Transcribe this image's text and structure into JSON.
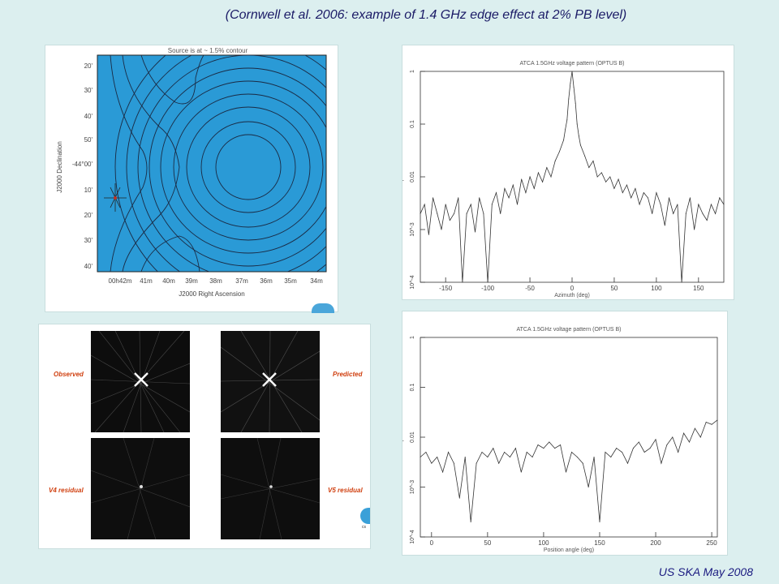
{
  "slide": {
    "title": "(Cornwell et al. 2006: example of 1.4 GHz edge effect at 2% PB level)",
    "footer": "US SKA May 2008",
    "background": "#dcefef"
  },
  "contour_map": {
    "title": "Source is at ~ 1.5% contour",
    "ylabel": "J2000 Declination",
    "xlabel": "J2000 Right Ascension",
    "y_ticks": [
      "20'",
      "30'",
      "40'",
      "50'",
      "-44°00'",
      "10'",
      "20'",
      "30'",
      "40'"
    ],
    "x_ticks": [
      "00h42m",
      "41m",
      "40m",
      "39m",
      "38m",
      "37m",
      "36m",
      "35m",
      "34m"
    ],
    "map_color": "#2a9ad6"
  },
  "image_grid": {
    "labels": [
      "Observed",
      "Predicted",
      "V4 residual",
      "V5 residual"
    ],
    "logo_text": "cs"
  },
  "chart_data": [
    {
      "type": "line",
      "title": "ATCA 1.5GHz voltage pattern (OPTUS B)",
      "xlabel": "Azimuth (deg)",
      "ylabel": "Amplitude",
      "xlim": [
        -180,
        180
      ],
      "ylim": [
        0.0001,
        1
      ],
      "yscale": "log",
      "x_ticks": [
        "-150",
        "-100",
        "-50",
        "0",
        "50",
        "100",
        "150"
      ],
      "y_ticks": [
        "10^-4",
        "10^-3",
        "0.01",
        "0.1",
        "1"
      ],
      "series": [
        {
          "x": [
            -180,
            -175,
            -170,
            -165,
            -160,
            -155,
            -150,
            -145,
            -140,
            -135,
            -130,
            -125,
            -120,
            -115,
            -110,
            -105,
            -100,
            -95,
            -90,
            -85,
            -80,
            -75,
            -70,
            -65,
            -60,
            -55,
            -50,
            -45,
            -40,
            -35,
            -30,
            -25,
            -20,
            -15,
            -10,
            -8,
            -6,
            -4,
            -2,
            0,
            2,
            4,
            6,
            8,
            10,
            15,
            20,
            25,
            30,
            35,
            40,
            45,
            50,
            55,
            60,
            65,
            70,
            75,
            80,
            85,
            90,
            95,
            100,
            105,
            110,
            115,
            120,
            125,
            130,
            135,
            140,
            145,
            150,
            155,
            160,
            165,
            170,
            175,
            180
          ],
          "values": [
            0.002,
            0.003,
            0.0008,
            0.004,
            0.002,
            0.001,
            0.003,
            0.0015,
            0.002,
            0.004,
            0.0001,
            0.002,
            0.003,
            0.0009,
            0.004,
            0.002,
            0.0001,
            0.003,
            0.005,
            0.002,
            0.006,
            0.004,
            0.007,
            0.003,
            0.009,
            0.005,
            0.01,
            0.006,
            0.012,
            0.008,
            0.015,
            0.01,
            0.02,
            0.03,
            0.05,
            0.08,
            0.12,
            0.3,
            0.6,
            1.0,
            0.5,
            0.25,
            0.1,
            0.06,
            0.04,
            0.025,
            0.015,
            0.02,
            0.01,
            0.012,
            0.008,
            0.01,
            0.006,
            0.009,
            0.005,
            0.007,
            0.004,
            0.006,
            0.003,
            0.005,
            0.004,
            0.002,
            0.005,
            0.003,
            0.0012,
            0.004,
            0.002,
            0.003,
            0.0001,
            0.002,
            0.004,
            0.001,
            0.003,
            0.002,
            0.0015,
            0.003,
            0.002,
            0.004,
            0.003
          ]
        }
      ]
    },
    {
      "type": "line",
      "title": "ATCA 1.5GHz voltage pattern (OPTUS B)",
      "xlabel": "Position angle (deg)",
      "ylabel": "Amplitude",
      "xlim": [
        -10,
        255
      ],
      "ylim": [
        0.0001,
        1
      ],
      "yscale": "log",
      "x_ticks": [
        "0",
        "50",
        "100",
        "150",
        "200",
        "250"
      ],
      "y_ticks": [
        "10^-4",
        "10^-3",
        "0.01",
        "0.1",
        "1"
      ],
      "series": [
        {
          "x": [
            -10,
            -5,
            0,
            5,
            10,
            15,
            20,
            25,
            30,
            35,
            40,
            45,
            50,
            55,
            60,
            65,
            70,
            75,
            80,
            85,
            90,
            95,
            100,
            105,
            110,
            115,
            120,
            125,
            130,
            135,
            140,
            145,
            150,
            155,
            160,
            165,
            170,
            175,
            180,
            185,
            190,
            195,
            200,
            205,
            210,
            215,
            220,
            225,
            230,
            235,
            240,
            245,
            250,
            255
          ],
          "values": [
            0.004,
            0.005,
            0.003,
            0.004,
            0.002,
            0.005,
            0.003,
            0.0006,
            0.004,
            0.0002,
            0.003,
            0.005,
            0.004,
            0.006,
            0.003,
            0.005,
            0.004,
            0.006,
            0.002,
            0.005,
            0.004,
            0.007,
            0.006,
            0.008,
            0.006,
            0.007,
            0.002,
            0.005,
            0.004,
            0.003,
            0.001,
            0.004,
            0.0002,
            0.005,
            0.004,
            0.006,
            0.005,
            0.003,
            0.006,
            0.008,
            0.005,
            0.006,
            0.009,
            0.003,
            0.007,
            0.01,
            0.005,
            0.012,
            0.008,
            0.015,
            0.01,
            0.02,
            0.018,
            0.022
          ]
        }
      ]
    }
  ]
}
